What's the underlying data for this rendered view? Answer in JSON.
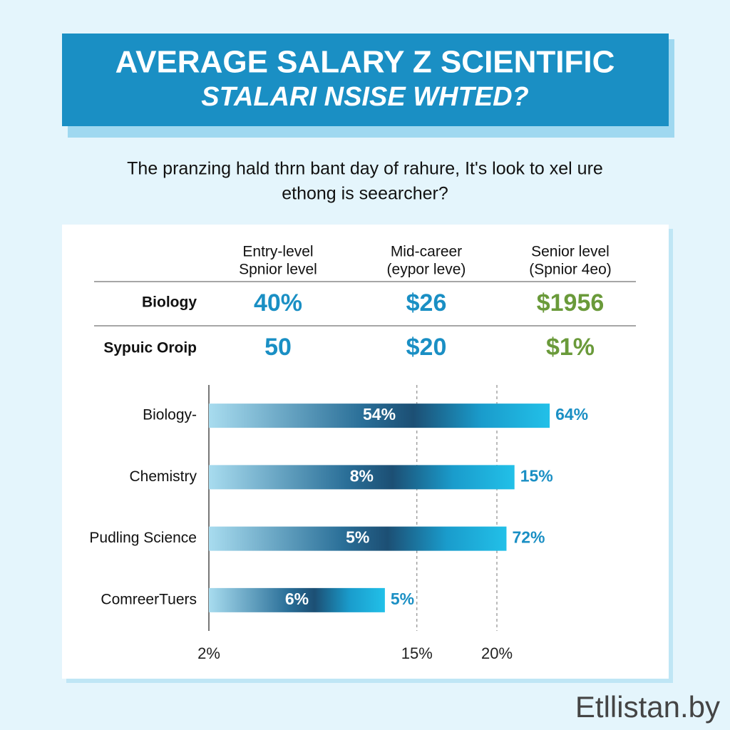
{
  "header": {
    "title": "AVERAGE SALARY Z SCIENTIFIC",
    "subtitle": "STALARI NSISE WHTED?"
  },
  "intro": [
    "The pranzing hald thrn bant day of rahure, It's look to xel ure",
    "ethong is seearcher?"
  ],
  "table": {
    "columns": [
      [
        "Entry-level",
        "Spnior level"
      ],
      [
        "Mid-career",
        "(eypor leve)"
      ],
      [
        "Senior level",
        "(Spnior 4eo)"
      ]
    ],
    "rows": [
      {
        "label": "Biology",
        "cells": [
          "40%",
          "$26",
          "$1956"
        ]
      },
      {
        "label": "Sypuic Oroip",
        "cells": [
          "50",
          "$20",
          "$1%"
        ]
      }
    ]
  },
  "chart_data": {
    "type": "bar",
    "orientation": "horizontal",
    "categories": [
      "Biology-",
      "Chemistry",
      "Pudling Science",
      "ComreerTuers"
    ],
    "values": [
      23.3,
      21.1,
      20.6,
      13.0
    ],
    "inner_labels": [
      "54%",
      "8%",
      "5%",
      "6%"
    ],
    "end_labels": [
      "64%",
      "15%",
      "72%",
      "5%"
    ],
    "color": "#1fb8e0",
    "xlim": [
      2,
      24
    ],
    "xticks": [
      {
        "value": 2,
        "label": "2%"
      },
      {
        "value": 15,
        "label": "15%"
      },
      {
        "value": 20,
        "label": "20%"
      }
    ],
    "grid": true
  },
  "watermark": "Etllistan.by"
}
